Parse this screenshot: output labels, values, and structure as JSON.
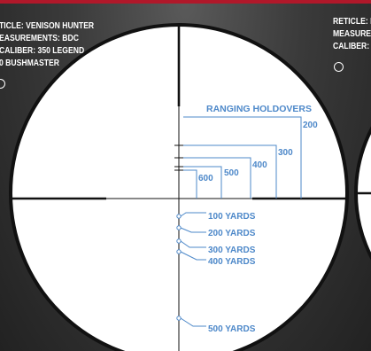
{
  "header": {
    "accent_color": "#b0182a"
  },
  "left_panel": {
    "lines": [
      "TICLE: VENISON HUNTER",
      "EASUREMENTS: BDC",
      "CALIBER: 350 LEGEND",
      "0 BUSHMASTER"
    ]
  },
  "right_panel": {
    "lines": [
      "RETICLE: H",
      "MEASURE",
      "CALIBER: "
    ]
  },
  "reticle": {
    "title": "RANGING HOLDOVERS",
    "holdovers": [
      "200",
      "300",
      "400",
      "500",
      "600"
    ],
    "yards": [
      "100 YARDS",
      "200 YARDS",
      "300 YARDS",
      "400 YARDS",
      "500 YARDS"
    ],
    "colors": {
      "reticle": "#111111",
      "scope_face": "#ffffff",
      "label": "#4d88c9"
    }
  }
}
